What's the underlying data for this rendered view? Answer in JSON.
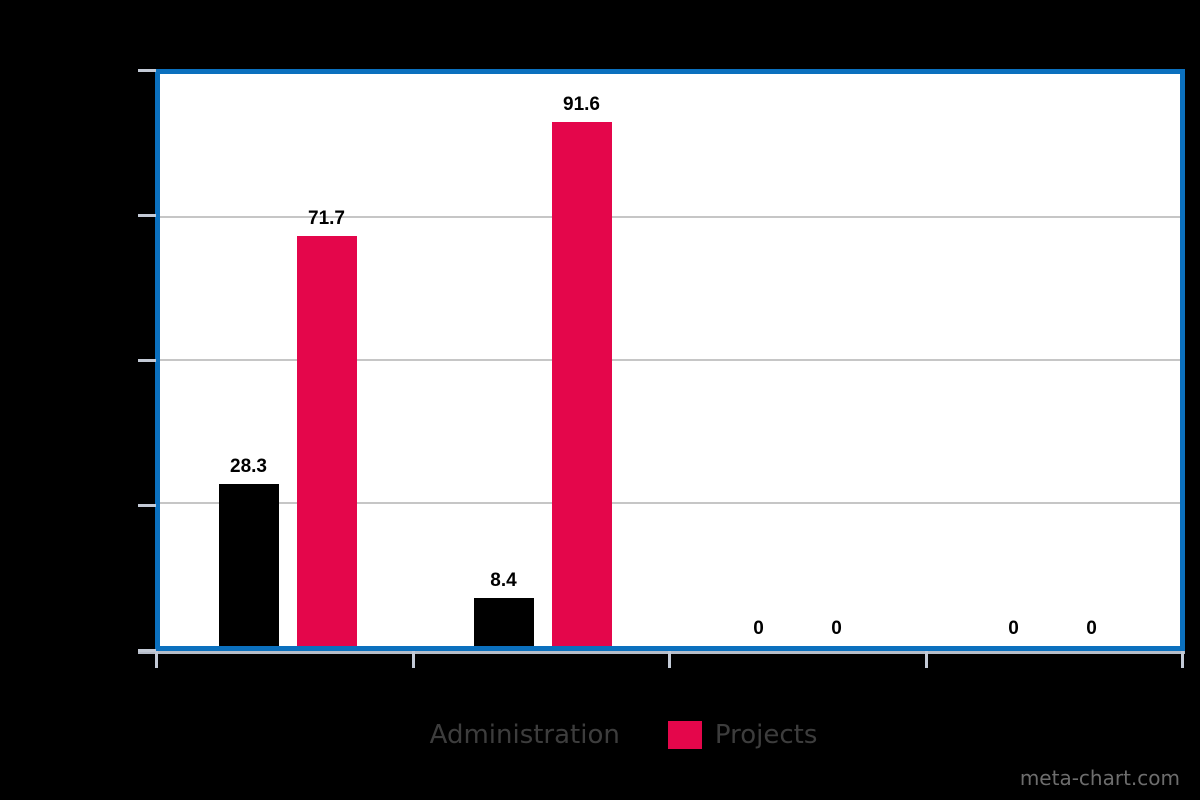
{
  "page": {
    "background_color": "#000000",
    "frame_border_color": "#0b70be"
  },
  "watermark": "meta-chart.com",
  "legend": {
    "items": [
      {
        "label": "Administration",
        "color": "#000000"
      },
      {
        "label": "Projects",
        "color": "#e4064b"
      }
    ]
  },
  "chart_data": {
    "type": "bar",
    "title": "",
    "xlabel": "",
    "ylabel": "",
    "categories": [
      "",
      "",
      "",
      ""
    ],
    "series": [
      {
        "name": "Administration",
        "color": "#000000",
        "values": [
          28.3,
          8.4,
          0,
          0
        ],
        "labels": [
          "28.3",
          "8.4",
          "0",
          "0"
        ]
      },
      {
        "name": "Projects",
        "color": "#e4064b",
        "values": [
          71.7,
          91.6,
          0,
          0
        ],
        "labels": [
          "71.7",
          "91.6",
          "0",
          "0"
        ]
      }
    ],
    "ylim": [
      0,
      100
    ],
    "gridlines_at": [
      25,
      50,
      75
    ],
    "grid": true,
    "legend_position": "bottom",
    "value_labels_shown": true,
    "gridline_color": "#c6c6c6",
    "tick_color": "#c3cad6"
  }
}
